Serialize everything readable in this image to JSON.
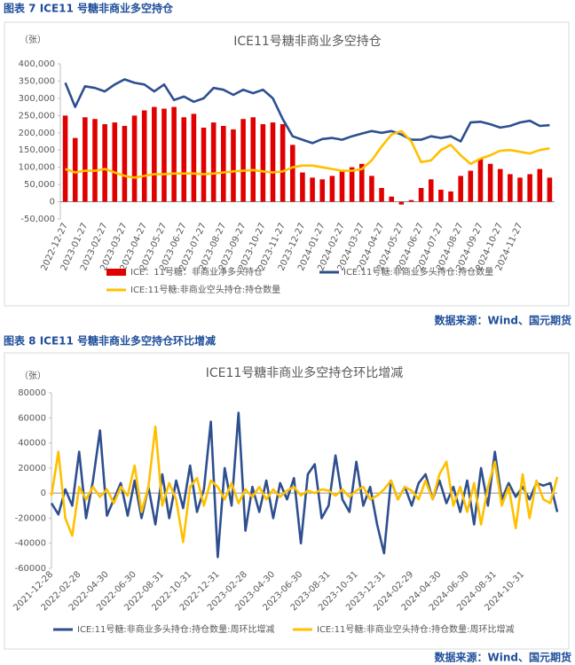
{
  "captions": [
    "图表 7  ICE11 号糖非商业多空持仓",
    "图表 8  ICE11 号糖非商业多空持仓环比增减"
  ],
  "sources": [
    "数据来源：Wind、国元期货",
    "数据来源：Wind、国元期货"
  ],
  "chart_data": [
    {
      "type": "combo",
      "title": "ICE11号糖非商业多空持仓",
      "y_unit": "（张）",
      "grid": false,
      "categories": [
        "2022-12-27",
        null,
        "2023-01-27",
        null,
        "2023-02-27",
        null,
        "2023-03-27",
        null,
        "2023-04-27",
        null,
        "2023-05-27",
        null,
        "2023-06-27",
        null,
        "2023-07-27",
        null,
        "2023-08-27",
        null,
        "2023-09-27",
        null,
        "2023-10-27",
        null,
        "2023-11-27",
        null,
        "2023-12-27",
        null,
        "2024-01-27",
        null,
        "2024-02-27",
        null,
        "2024-03-27",
        null,
        "2024-04-27",
        null,
        "2024-05-27",
        null,
        "2024-06-27",
        null,
        "2024-07-27",
        null,
        "2024-08-27",
        null,
        "2024-09-27",
        null,
        "2024-10-27",
        null,
        "2024-11-27",
        null,
        null,
        null
      ],
      "ylim": [
        -50000,
        400000
      ],
      "yticks": [
        {
          "value": -50000,
          "label": "-50,000"
        },
        {
          "value": 0,
          "label": "0"
        },
        {
          "value": 50000,
          "label": "50,000"
        },
        {
          "value": 100000,
          "label": "100,000"
        },
        {
          "value": 150000,
          "label": "150,000"
        },
        {
          "value": 200000,
          "label": "200,000"
        },
        {
          "value": 250000,
          "label": "250,000"
        },
        {
          "value": 300000,
          "label": "300,000"
        },
        {
          "value": 350000,
          "label": "350,000"
        },
        {
          "value": 400000,
          "label": "400,000"
        }
      ],
      "series": [
        {
          "name": "ICE：11号糖：非商业净多头持仓",
          "type": "bar",
          "color": "#e00000",
          "values": [
            250000,
            185000,
            245000,
            240000,
            225000,
            230000,
            220000,
            250000,
            265000,
            275000,
            270000,
            275000,
            245000,
            255000,
            215000,
            230000,
            220000,
            210000,
            240000,
            245000,
            225000,
            230000,
            225000,
            165000,
            85000,
            70000,
            65000,
            75000,
            90000,
            100000,
            110000,
            75000,
            40000,
            15000,
            -8000,
            5000,
            40000,
            65000,
            35000,
            30000,
            75000,
            90000,
            125000,
            110000,
            95000,
            80000,
            70000,
            80000,
            95000,
            70000
          ]
        },
        {
          "name": "ICE:11号糖:非商业多头持仓:持仓数量",
          "type": "line",
          "color": "#2e4f8f",
          "values": [
            345000,
            275000,
            335000,
            330000,
            320000,
            340000,
            355000,
            345000,
            340000,
            320000,
            340000,
            295000,
            305000,
            290000,
            300000,
            330000,
            325000,
            310000,
            325000,
            315000,
            325000,
            300000,
            240000,
            190000,
            180000,
            170000,
            182000,
            185000,
            180000,
            190000,
            198000,
            205000,
            200000,
            205000,
            195000,
            180000,
            180000,
            190000,
            185000,
            190000,
            175000,
            230000,
            232000,
            225000,
            215000,
            220000,
            230000,
            235000,
            220000,
            222000
          ]
        },
        {
          "name": "ICE:11号糖:非商业空头持仓:持仓数量",
          "type": "line",
          "color": "#ffc000",
          "values": [
            95000,
            85000,
            90000,
            90000,
            95000,
            85000,
            75000,
            70000,
            75000,
            80000,
            80000,
            82000,
            82000,
            82000,
            80000,
            82000,
            85000,
            88000,
            90000,
            92000,
            88000,
            85000,
            88000,
            100000,
            105000,
            105000,
            100000,
            95000,
            90000,
            90000,
            95000,
            120000,
            160000,
            195000,
            205000,
            175000,
            115000,
            120000,
            150000,
            165000,
            135000,
            110000,
            125000,
            135000,
            148000,
            150000,
            145000,
            140000,
            150000,
            155000
          ]
        }
      ]
    },
    {
      "type": "line",
      "title": "ICE11号糖非商业多空持仓环比增减",
      "y_unit": "（张）",
      "grid": false,
      "categories": [
        "2021-12-28",
        null,
        null,
        null,
        "2022-02-28",
        null,
        null,
        null,
        "2022-04-30",
        null,
        null,
        null,
        "2022-06-30",
        null,
        null,
        null,
        "2022-08-31",
        null,
        null,
        null,
        "2022-10-31",
        null,
        null,
        null,
        "2022-12-31",
        null,
        null,
        null,
        "2023-02-28",
        null,
        null,
        null,
        "2023-04-30",
        null,
        null,
        null,
        "2023-06-30",
        null,
        null,
        null,
        "2023-08-31",
        null,
        null,
        null,
        "2023-10-31",
        null,
        null,
        null,
        "2023-12-31",
        null,
        null,
        null,
        "2024-02-29",
        null,
        null,
        null,
        "2024-04-30",
        null,
        null,
        null,
        "2024-06-30",
        null,
        null,
        null,
        "2024-08-31",
        null,
        null,
        null,
        "2024-10-31",
        null,
        null,
        null,
        null,
        null
      ],
      "ylim": [
        -60000,
        80000
      ],
      "yticks": [
        -60000,
        -40000,
        -20000,
        0,
        20000,
        40000,
        60000,
        80000
      ],
      "series": [
        {
          "name": "ICE:11号糖:非商业多头持仓:持仓数量:周环比增减",
          "color": "#2e4f8f",
          "values": [
            -8000,
            -17000,
            3000,
            -10000,
            33000,
            -20000,
            10000,
            50000,
            -18000,
            -5000,
            8000,
            -18000,
            10000,
            -20000,
            5000,
            -25000,
            15000,
            -20000,
            10000,
            -12000,
            22000,
            -15000,
            3000,
            57000,
            -51000,
            20000,
            -10000,
            64000,
            -30000,
            5000,
            -15000,
            10000,
            -20000,
            8000,
            -5000,
            12000,
            -40000,
            15000,
            23000,
            -20000,
            -10000,
            30000,
            -5000,
            -15000,
            25000,
            -10000,
            5000,
            -25000,
            -48000,
            10000,
            -5000,
            5000,
            -10000,
            8000,
            15000,
            -5000,
            10000,
            -8000,
            5000,
            -15000,
            10000,
            -25000,
            20000,
            -10000,
            33000,
            -5000,
            8000,
            -3000,
            5000,
            -5000,
            8000,
            6000,
            8000,
            -15000
          ]
        },
        {
          "name": "ICE:11号糖:非商业空头持仓:持仓数量:周环比增减",
          "color": "#ffc000",
          "values": [
            -2000,
            33000,
            -20000,
            -34000,
            5000,
            -5000,
            5000,
            -3000,
            3000,
            -8000,
            5000,
            -2000,
            22000,
            -15000,
            5000,
            53000,
            -10000,
            8000,
            -5000,
            -39000,
            5000,
            12000,
            -10000,
            10000,
            5000,
            -5000,
            8000,
            -8000,
            3000,
            -3000,
            5000,
            -5000,
            3000,
            -3000,
            2000,
            5000,
            -2000,
            2000,
            0,
            3000,
            2000,
            -2000,
            3000,
            -3000,
            2000,
            5000,
            -5000,
            -2000,
            3000,
            10000,
            -5000,
            5000,
            2000,
            -5000,
            10000,
            -5000,
            15000,
            25000,
            -10000,
            5000,
            -15000,
            8000,
            -25000,
            5000,
            25000,
            -10000,
            5000,
            -28000,
            15000,
            -20000,
            10000,
            -5000,
            -8000,
            13000
          ]
        }
      ]
    }
  ]
}
